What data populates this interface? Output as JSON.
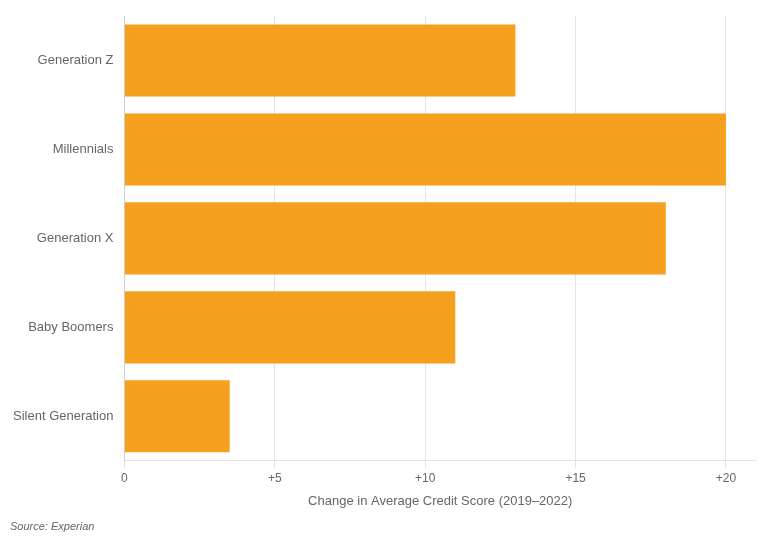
{
  "chart_data": {
    "type": "bar",
    "orientation": "horizontal",
    "categories": [
      "Silent Generation",
      "Baby Boomers",
      "Generation X",
      "Millennials",
      "Generation Z"
    ],
    "values": [
      3.5,
      11,
      18,
      20,
      13
    ],
    "color": "#F5A01E",
    "xlabel": "Change in Average Credit Score (2019–2022)",
    "xlim": [
      0,
      21
    ],
    "xticks": [
      0,
      {
        "value": 5,
        "label": "+5"
      },
      {
        "value": 10,
        "label": "+10"
      },
      {
        "value": 15,
        "label": "+15"
      },
      {
        "value": 20,
        "label": "+20"
      }
    ],
    "grid": true,
    "source": "Source: Experian"
  }
}
